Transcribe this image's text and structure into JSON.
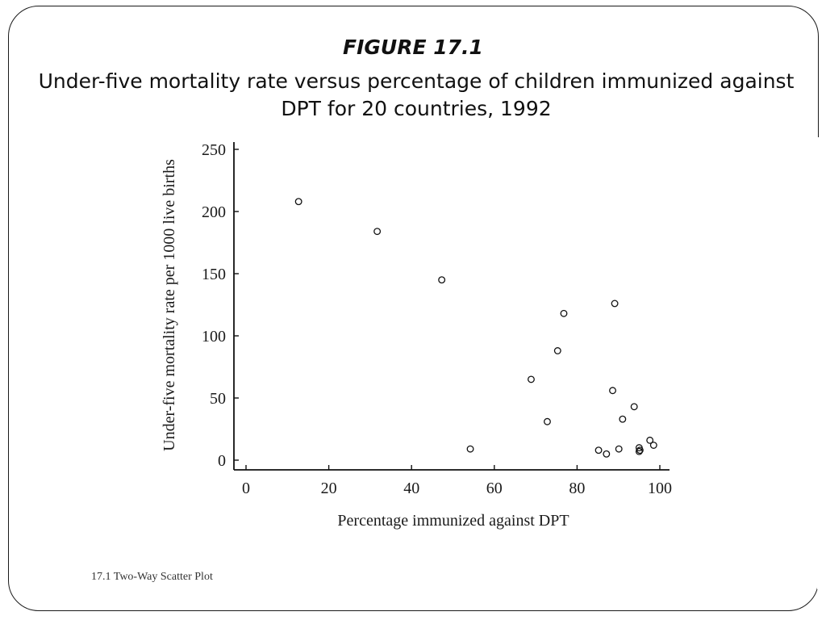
{
  "figure_label": "FIGURE 17.1",
  "title": "Under-five mortality rate versus percentage of children immunized against DPT for 20 countries, 1992",
  "footer": "17.1 Two-Way Scatter Plot",
  "chart_data": {
    "type": "scatter",
    "xlabel": "Percentage immunized against DPT",
    "ylabel": "Under-five mortality rate per 1000 live births",
    "xlim": [
      0,
      100
    ],
    "ylim": [
      0,
      250
    ],
    "x_ticks": [
      0,
      20,
      40,
      60,
      80,
      100
    ],
    "y_ticks": [
      0,
      50,
      100,
      150,
      200,
      250
    ],
    "x_tick_labels": [
      "0",
      "20",
      "40",
      "60",
      "80",
      "100"
    ],
    "y_tick_labels": [
      "0",
      "50",
      "100",
      "150",
      "200",
      "250"
    ],
    "grid": false,
    "points": [
      {
        "x": 12.7,
        "y": 208
      },
      {
        "x": 31.7,
        "y": 184
      },
      {
        "x": 47.3,
        "y": 145
      },
      {
        "x": 54.2,
        "y": 9
      },
      {
        "x": 68.9,
        "y": 65
      },
      {
        "x": 72.8,
        "y": 31
      },
      {
        "x": 75.3,
        "y": 88
      },
      {
        "x": 76.8,
        "y": 118
      },
      {
        "x": 85.2,
        "y": 8
      },
      {
        "x": 87.1,
        "y": 5
      },
      {
        "x": 88.6,
        "y": 56
      },
      {
        "x": 89.1,
        "y": 126
      },
      {
        "x": 90.1,
        "y": 9
      },
      {
        "x": 91.0,
        "y": 33
      },
      {
        "x": 93.8,
        "y": 43
      },
      {
        "x": 95.0,
        "y": 10
      },
      {
        "x": 95.0,
        "y": 7
      },
      {
        "x": 95.2,
        "y": 8
      },
      {
        "x": 97.6,
        "y": 16
      },
      {
        "x": 98.5,
        "y": 12
      }
    ]
  }
}
